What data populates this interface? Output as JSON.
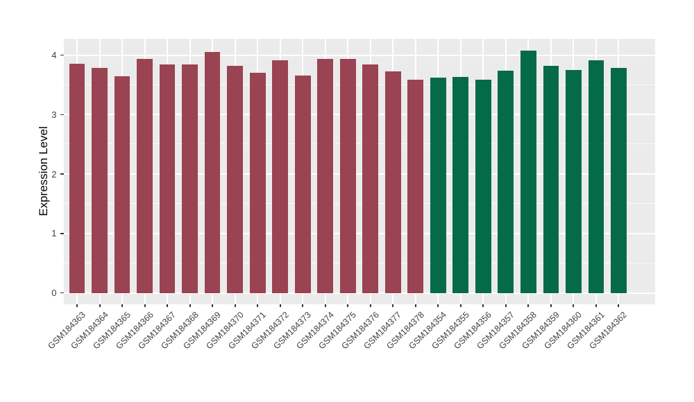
{
  "figure": {
    "background": "#FFFFFF",
    "panel_background": "#EBEBEB",
    "grid_color": "#FFFFFF",
    "axis_text_color": "#404040",
    "axis_title_color": "#000000",
    "tick_mark_color": "#333333"
  },
  "chart_data": {
    "type": "bar",
    "title": "",
    "xlabel": "",
    "ylabel": "Expression Level",
    "y_ticks": [
      0,
      1,
      2,
      3,
      4
    ],
    "ylim": [
      -0.2,
      4.29
    ],
    "grid": "major and minor horizontal white gridlines, vertical white gridline at each category",
    "legend_position": "none",
    "groups": [
      {
        "name": "group-red",
        "color": "#9A4352"
      },
      {
        "name": "group-green",
        "color": "#056A48"
      }
    ],
    "bars": [
      {
        "label": "GSM184363",
        "value": 3.86,
        "group": 0
      },
      {
        "label": "GSM184364",
        "value": 3.79,
        "group": 0
      },
      {
        "label": "GSM184365",
        "value": 3.65,
        "group": 0
      },
      {
        "label": "GSM184366",
        "value": 3.94,
        "group": 0
      },
      {
        "label": "GSM184367",
        "value": 3.84,
        "group": 0
      },
      {
        "label": "GSM184368",
        "value": 3.85,
        "group": 0
      },
      {
        "label": "GSM184369",
        "value": 4.05,
        "group": 0
      },
      {
        "label": "GSM184370",
        "value": 3.82,
        "group": 0
      },
      {
        "label": "GSM184371",
        "value": 3.7,
        "group": 0
      },
      {
        "label": "GSM184372",
        "value": 3.92,
        "group": 0
      },
      {
        "label": "GSM184373",
        "value": 3.66,
        "group": 0
      },
      {
        "label": "GSM184374",
        "value": 3.94,
        "group": 0
      },
      {
        "label": "GSM184375",
        "value": 3.94,
        "group": 0
      },
      {
        "label": "GSM184376",
        "value": 3.85,
        "group": 0
      },
      {
        "label": "GSM184377",
        "value": 3.73,
        "group": 0
      },
      {
        "label": "GSM184378",
        "value": 3.59,
        "group": 0
      },
      {
        "label": "GSM184354",
        "value": 3.62,
        "group": 1
      },
      {
        "label": "GSM184355",
        "value": 3.63,
        "group": 1
      },
      {
        "label": "GSM184356",
        "value": 3.59,
        "group": 1
      },
      {
        "label": "GSM184357",
        "value": 3.74,
        "group": 1
      },
      {
        "label": "GSM184358",
        "value": 4.08,
        "group": 1
      },
      {
        "label": "GSM184359",
        "value": 3.82,
        "group": 1
      },
      {
        "label": "GSM184360",
        "value": 3.75,
        "group": 1
      },
      {
        "label": "GSM184361",
        "value": 3.91,
        "group": 1
      },
      {
        "label": "GSM184362",
        "value": 3.79,
        "group": 1
      }
    ]
  }
}
